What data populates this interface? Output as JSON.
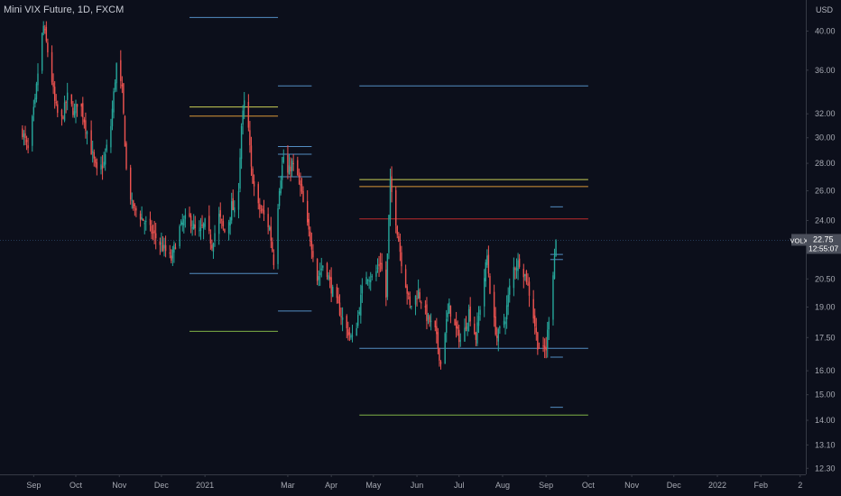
{
  "header": {
    "title": "Mini VIX Future, 1D, FXCM",
    "currency": "USD"
  },
  "price_tag": {
    "symbol": "VOLX",
    "price": "22.75",
    "countdown": "12:55:07"
  },
  "colors": {
    "background": "#0c0f1b",
    "up": "#26a69a",
    "down": "#ef5350",
    "blue": "#5b9bd5",
    "orange": "#f0a63c",
    "yellow": "#dfe45c",
    "green": "#8bc34a",
    "red": "#d32f2f"
  },
  "chart_data": {
    "type": "candlestick",
    "title": "Mini VIX Future, 1D, FXCM",
    "ylabel": "USD",
    "y_scale": "log",
    "ylim": [
      12.1,
      43.5
    ],
    "xlim": [
      "2020-08-08",
      "2022-03-05"
    ],
    "y_ticks": [
      "40.00",
      "36.00",
      "32.00",
      "30.00",
      "28.00",
      "26.00",
      "24.00",
      "20.50",
      "19.00",
      "17.50",
      "16.00",
      "15.00",
      "14.00",
      "13.10",
      "12.30"
    ],
    "x_ticks": [
      {
        "label": "Sep",
        "date": "2020-09-01"
      },
      {
        "label": "Oct",
        "date": "2020-10-01"
      },
      {
        "label": "Nov",
        "date": "2020-11-01"
      },
      {
        "label": "Dec",
        "date": "2020-12-01"
      },
      {
        "label": "2021",
        "date": "2021-01-01"
      },
      {
        "label": "Mar",
        "date": "2021-03-01"
      },
      {
        "label": "Apr",
        "date": "2021-04-01"
      },
      {
        "label": "May",
        "date": "2021-05-01"
      },
      {
        "label": "Jun",
        "date": "2021-06-01"
      },
      {
        "label": "Jul",
        "date": "2021-07-01"
      },
      {
        "label": "Aug",
        "date": "2021-08-01"
      },
      {
        "label": "Sep",
        "date": "2021-09-01"
      },
      {
        "label": "Oct",
        "date": "2021-10-01"
      },
      {
        "label": "Nov",
        "date": "2021-11-01"
      },
      {
        "label": "Dec",
        "date": "2021-12-01"
      },
      {
        "label": "2022",
        "date": "2022-01-01"
      },
      {
        "label": "Feb",
        "date": "2022-02-01"
      },
      {
        "label": "2",
        "date": "2022-03-01"
      }
    ],
    "last_price": 22.75,
    "price_path": [
      [
        "2020-08-24",
        30.5
      ],
      [
        "2020-08-28",
        29.0
      ],
      [
        "2020-09-02",
        33.0
      ],
      [
        "2020-09-06",
        38.5
      ],
      [
        "2020-09-08",
        40.5
      ],
      [
        "2020-09-12",
        37.0
      ],
      [
        "2020-09-16",
        33.0
      ],
      [
        "2020-09-20",
        31.0
      ],
      [
        "2020-09-25",
        33.5
      ],
      [
        "2020-09-30",
        32.0
      ],
      [
        "2020-10-03",
        33.5
      ],
      [
        "2020-10-07",
        31.5
      ],
      [
        "2020-10-12",
        29.0
      ],
      [
        "2020-10-16",
        27.3
      ],
      [
        "2020-10-21",
        28.0
      ],
      [
        "2020-10-26",
        31.0
      ],
      [
        "2020-10-30",
        36.5
      ],
      [
        "2020-11-03",
        34.0
      ],
      [
        "2020-11-06",
        27.5
      ],
      [
        "2020-11-10",
        25.0
      ],
      [
        "2020-11-16",
        24.3
      ],
      [
        "2020-11-22",
        23.5
      ],
      [
        "2020-11-28",
        22.8
      ],
      [
        "2020-12-03",
        22.2
      ],
      [
        "2020-12-08",
        21.6
      ],
      [
        "2020-12-14",
        23.5
      ],
      [
        "2020-12-20",
        24.3
      ],
      [
        "2020-12-27",
        23.0
      ],
      [
        "2021-01-01",
        23.8
      ],
      [
        "2021-01-06",
        22.5
      ],
      [
        "2021-01-11",
        24.3
      ],
      [
        "2021-01-16",
        23.0
      ],
      [
        "2021-01-20",
        25.0
      ],
      [
        "2021-01-24",
        24.0
      ],
      [
        "2021-01-27",
        31.0
      ],
      [
        "2021-01-30",
        33.8
      ],
      [
        "2021-02-03",
        27.5
      ],
      [
        "2021-02-07",
        25.0
      ],
      [
        "2021-02-11",
        24.5
      ],
      [
        "2021-02-16",
        23.5
      ],
      [
        "2021-02-19",
        21.5
      ],
      [
        "2021-02-23",
        26.3
      ],
      [
        "2021-02-26",
        28.5
      ],
      [
        "2021-03-01",
        27.2
      ],
      [
        "2021-03-04",
        28.0
      ],
      [
        "2021-03-09",
        26.8
      ],
      [
        "2021-03-14",
        24.0
      ],
      [
        "2021-03-18",
        22.5
      ],
      [
        "2021-03-22",
        20.5
      ],
      [
        "2021-03-27",
        21.5
      ],
      [
        "2021-04-01",
        20.0
      ],
      [
        "2021-04-06",
        19.0
      ],
      [
        "2021-04-11",
        18.0
      ],
      [
        "2021-04-17",
        17.3
      ],
      [
        "2021-04-21",
        19.0
      ],
      [
        "2021-04-25",
        20.8
      ],
      [
        "2021-05-01",
        20.5
      ],
      [
        "2021-05-06",
        21.5
      ],
      [
        "2021-05-10",
        19.5
      ],
      [
        "2021-05-13",
        26.5
      ],
      [
        "2021-05-17",
        24.0
      ],
      [
        "2021-05-21",
        21.5
      ],
      [
        "2021-05-27",
        19.0
      ],
      [
        "2021-06-02",
        19.8
      ],
      [
        "2021-06-08",
        18.5
      ],
      [
        "2021-06-14",
        17.8
      ],
      [
        "2021-06-18",
        16.3
      ],
      [
        "2021-06-20",
        17.5
      ],
      [
        "2021-06-24",
        19.0
      ],
      [
        "2021-06-28",
        18.0
      ],
      [
        "2021-07-03",
        17.2
      ],
      [
        "2021-07-08",
        18.8
      ],
      [
        "2021-07-13",
        17.5
      ],
      [
        "2021-07-18",
        20.0
      ],
      [
        "2021-07-21",
        21.8
      ],
      [
        "2021-07-24",
        19.0
      ],
      [
        "2021-07-28",
        17.5
      ],
      [
        "2021-08-03",
        18.5
      ],
      [
        "2021-08-08",
        21.0
      ],
      [
        "2021-08-13",
        21.5
      ],
      [
        "2021-08-18",
        20.5
      ],
      [
        "2021-08-22",
        19.0
      ],
      [
        "2021-08-26",
        17.2
      ],
      [
        "2021-08-29",
        16.8
      ],
      [
        "2021-09-01",
        17.0
      ],
      [
        "2021-09-05",
        20.0
      ],
      [
        "2021-09-08",
        22.75
      ]
    ],
    "levels": [
      {
        "color": "#5b9bd5",
        "y": 41.5,
        "x1": "2020-12-21",
        "x2": "2021-02-22"
      },
      {
        "color": "#5b9bd5",
        "y": 34.5,
        "x1": "2021-02-22",
        "x2": "2021-03-18"
      },
      {
        "color": "#dfe45c",
        "y": 32.6,
        "x1": "2020-12-21",
        "x2": "2021-02-22"
      },
      {
        "color": "#f0a63c",
        "y": 31.8,
        "x1": "2020-12-21",
        "x2": "2021-02-22"
      },
      {
        "color": "#5b9bd5",
        "y": 29.3,
        "x1": "2021-02-22",
        "x2": "2021-03-18"
      },
      {
        "color": "#5b9bd5",
        "y": 28.7,
        "x1": "2021-02-22",
        "x2": "2021-03-18"
      },
      {
        "color": "#5b9bd5",
        "y": 27.0,
        "x1": "2021-02-22",
        "x2": "2021-03-18"
      },
      {
        "color": "#5b9bd5",
        "y": 20.8,
        "x1": "2020-12-21",
        "x2": "2021-02-22"
      },
      {
        "color": "#5b9bd5",
        "y": 18.8,
        "x1": "2021-02-22",
        "x2": "2021-03-18"
      },
      {
        "color": "#8bc34a",
        "y": 17.8,
        "x1": "2020-12-21",
        "x2": "2021-02-22"
      },
      {
        "color": "#5b9bd5",
        "y": 34.5,
        "x1": "2021-04-21",
        "x2": "2021-10-01"
      },
      {
        "color": "#dfe45c",
        "y": 26.8,
        "x1": "2021-04-21",
        "x2": "2021-10-01"
      },
      {
        "color": "#f0a63c",
        "y": 26.3,
        "x1": "2021-04-21",
        "x2": "2021-10-01"
      },
      {
        "color": "#d32f2f",
        "y": 24.1,
        "x1": "2021-04-21",
        "x2": "2021-10-01"
      },
      {
        "color": "#5b9bd5",
        "y": 17.0,
        "x1": "2021-04-21",
        "x2": "2021-10-01"
      },
      {
        "color": "#8bc34a",
        "y": 14.2,
        "x1": "2021-04-21",
        "x2": "2021-10-01"
      },
      {
        "color": "#5b9bd5",
        "y": 24.9,
        "x1": "2021-09-04",
        "x2": "2021-09-13"
      },
      {
        "color": "#5b9bd5",
        "y": 21.6,
        "x1": "2021-09-04",
        "x2": "2021-09-13"
      },
      {
        "color": "#5b9bd5",
        "y": 21.9,
        "x1": "2021-09-04",
        "x2": "2021-09-13"
      },
      {
        "color": "#5b9bd5",
        "y": 16.6,
        "x1": "2021-09-04",
        "x2": "2021-09-13"
      },
      {
        "color": "#5b9bd5",
        "y": 14.5,
        "x1": "2021-09-04",
        "x2": "2021-09-13"
      }
    ]
  }
}
